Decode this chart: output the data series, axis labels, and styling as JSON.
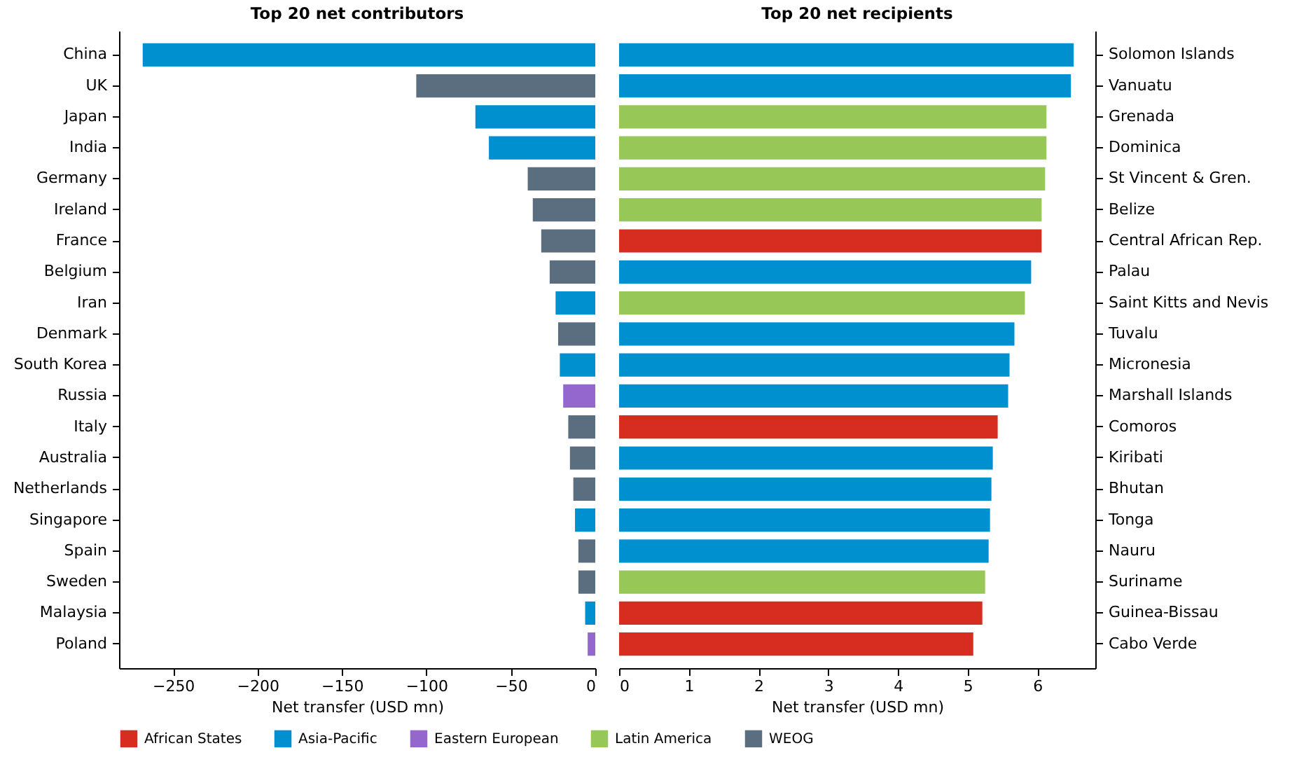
{
  "chart_data": [
    {
      "type": "bar",
      "orientation": "horizontal",
      "title": "Top 20 net contributors",
      "xlabel": "Net transfer (USD mn)",
      "legend": "bottom",
      "categories": [
        "China",
        "UK",
        "Japan",
        "India",
        "Germany",
        "Ireland",
        "France",
        "Belgium",
        "Iran",
        "Denmark",
        "South Korea",
        "Russia",
        "Italy",
        "Australia",
        "Netherlands",
        "Singapore",
        "Spain",
        "Sweden",
        "Malaysia",
        "Poland"
      ],
      "xlim": [
        -282,
        0
      ],
      "xticks": [
        -250,
        -200,
        -150,
        -100,
        -50,
        0
      ],
      "series": [
        {
          "name": "Asia-Pacific",
          "color": "#0090cf",
          "values": [
            -268,
            null,
            -71,
            -63,
            null,
            null,
            null,
            null,
            -23.5,
            null,
            -21,
            null,
            null,
            null,
            null,
            -12,
            null,
            null,
            -6,
            null
          ]
        },
        {
          "name": "Eastern European",
          "color": "#9467cf",
          "values": [
            null,
            null,
            null,
            null,
            null,
            null,
            null,
            null,
            null,
            null,
            null,
            -19,
            null,
            null,
            null,
            null,
            null,
            null,
            null,
            -4.5
          ]
        },
        {
          "name": "WEOG",
          "color": "#5b6e80",
          "values": [
            null,
            -106,
            null,
            null,
            -40,
            -37,
            -32,
            -27,
            null,
            -22,
            null,
            null,
            -16,
            -15,
            -13,
            null,
            -10,
            -10,
            null,
            null
          ]
        }
      ]
    },
    {
      "type": "bar",
      "orientation": "horizontal",
      "title": "Top 20 net recipients",
      "xlabel": "Net transfer (USD mn)",
      "legend": "bottom",
      "categories": [
        "Solomon Islands",
        "Vanuatu",
        "Grenada",
        "Dominica",
        "St Vincent & Gren.",
        "Belize",
        "Central African Rep.",
        "Palau",
        "Saint Kitts and Nevis",
        "Tuvalu",
        "Micronesia",
        "Marshall Islands",
        "Comoros",
        "Kiribati",
        "Bhutan",
        "Tonga",
        "Nauru",
        "Suriname",
        "Guinea-Bissau",
        "Cabo Verde"
      ],
      "xlim": [
        0,
        6.83
      ],
      "xticks": [
        0,
        1,
        2,
        3,
        4,
        5,
        6
      ],
      "series": [
        {
          "name": "African States",
          "color": "#d62d20",
          "values": [
            null,
            null,
            null,
            null,
            null,
            null,
            6.06,
            null,
            null,
            null,
            null,
            null,
            5.43,
            null,
            null,
            null,
            null,
            null,
            5.21,
            5.08
          ]
        },
        {
          "name": "Asia-Pacific",
          "color": "#0090cf",
          "values": [
            6.52,
            6.48,
            null,
            null,
            null,
            null,
            null,
            5.91,
            null,
            5.67,
            5.6,
            5.58,
            null,
            5.36,
            5.34,
            5.32,
            5.3,
            null,
            null,
            null
          ]
        },
        {
          "name": "Latin America",
          "color": "#97c857",
          "values": [
            null,
            null,
            6.13,
            6.13,
            6.11,
            6.06,
            null,
            null,
            5.82,
            null,
            null,
            null,
            null,
            null,
            null,
            null,
            null,
            5.25,
            null,
            null
          ]
        }
      ]
    }
  ]
}
